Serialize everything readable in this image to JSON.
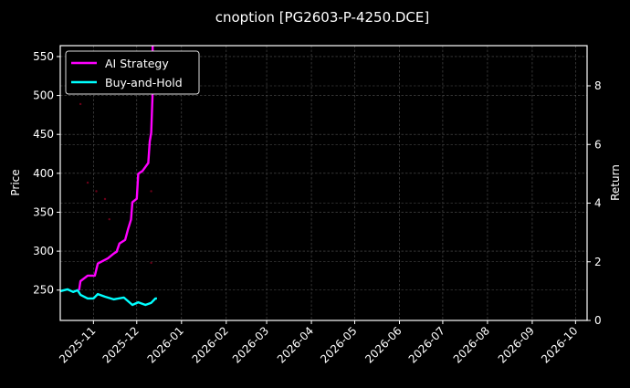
{
  "chart_data": {
    "type": "line",
    "title": "cnoption [PG2603-P-4250.DCE]",
    "ylabel": "Price",
    "y2label": "Return",
    "xlim": [
      "2025-10-09",
      "2026-10-09"
    ],
    "ylim": [
      211,
      564
    ],
    "y2lim": [
      0,
      9.37
    ],
    "xticks": [
      "2025-11",
      "2025-12",
      "2026-01",
      "2026-02",
      "2026-03",
      "2026-04",
      "2026-05",
      "2026-06",
      "2026-07",
      "2026-08",
      "2026-09",
      "2026-10"
    ],
    "yticks": [
      250,
      300,
      350,
      400,
      450,
      500,
      550
    ],
    "y2ticks": [
      0,
      2,
      4,
      6,
      8
    ],
    "grid": true,
    "legend": "top-left",
    "background": "#000000",
    "series": [
      {
        "name": "AI Strategy",
        "axis": "right",
        "color": "#ff00ff",
        "x": [
          "2025-10-22",
          "2025-10-23",
          "2025-10-28",
          "2025-11-02",
          "2025-11-04",
          "2025-11-11",
          "2025-11-15",
          "2025-11-17",
          "2025-11-19",
          "2025-11-23",
          "2025-11-25",
          "2025-11-27",
          "2025-11-28",
          "2025-12-01",
          "2025-12-02",
          "2025-12-05",
          "2025-12-09",
          "2025-12-10",
          "2025-12-11",
          "2025-12-12",
          "2025-12-12"
        ],
        "y": [
          1.03,
          1.34,
          1.53,
          1.53,
          1.94,
          2.12,
          2.28,
          2.34,
          2.62,
          2.75,
          3.12,
          3.44,
          4.03,
          4.15,
          5.0,
          5.1,
          5.37,
          6.1,
          6.4,
          7.8,
          9.6
        ]
      },
      {
        "name": "Buy-and-Hold",
        "axis": "right",
        "color": "#00ffff",
        "x": [
          "2025-10-09",
          "2025-10-14",
          "2025-10-18",
          "2025-10-21",
          "2025-10-23",
          "2025-10-28",
          "2025-11-01",
          "2025-11-04",
          "2025-11-09",
          "2025-11-15",
          "2025-11-22",
          "2025-11-28",
          "2025-12-02",
          "2025-12-07",
          "2025-12-11",
          "2025-12-14",
          "2025-12-15"
        ],
        "y": [
          1.0,
          1.06,
          0.97,
          1.03,
          0.875,
          0.75,
          0.75,
          0.9,
          0.81,
          0.72,
          0.78,
          0.53,
          0.62,
          0.53,
          0.6,
          0.75,
          0.75
        ]
      },
      {
        "axis": "left",
        "color": "#6a0018",
        "style": "dots",
        "x": [
          "2025-10-23",
          "2025-10-28",
          "2025-11-03",
          "2025-11-09",
          "2025-11-12",
          "2025-12-11",
          "2025-12-11"
        ],
        "y": [
          489,
          388,
          377,
          367,
          341,
          285,
          377
        ]
      }
    ]
  }
}
